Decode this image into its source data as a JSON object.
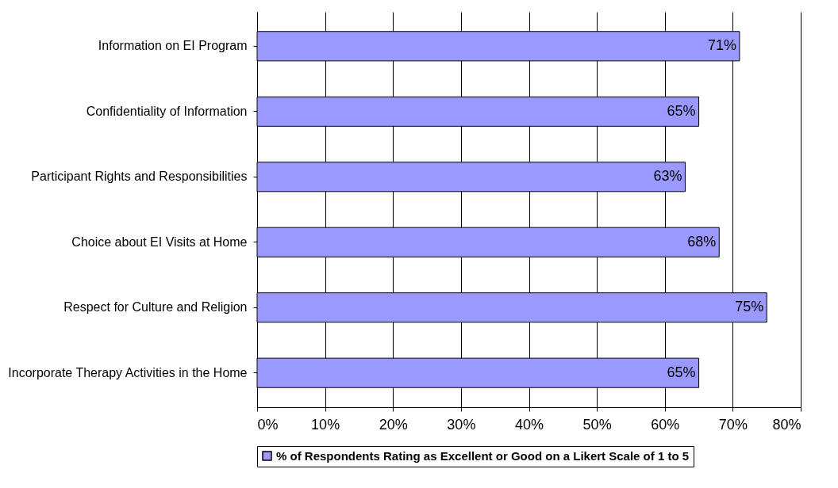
{
  "chart_data": {
    "type": "bar",
    "orientation": "horizontal",
    "categories": [
      "Information on EI Program",
      "Confidentiality of Information",
      "Participant Rights and Responsibilities",
      "Choice about EI Visits at Home",
      "Respect for Culture and Religion",
      "Incorporate Therapy Activities in the Home"
    ],
    "series": [
      {
        "name": "% of Respondents Rating as Excellent or Good on a Likert Scale of 1 to 5",
        "color": "#9999ff",
        "values": [
          71,
          65,
          63,
          68,
          75,
          65
        ],
        "value_labels": [
          "71%",
          "65%",
          "63%",
          "68%",
          "75%",
          "65%"
        ]
      }
    ],
    "xlim": [
      0,
      80
    ],
    "xticks": [
      {
        "value": 0,
        "label": "0%"
      },
      {
        "value": 10,
        "label": "10%"
      },
      {
        "value": 20,
        "label": "20%"
      },
      {
        "value": 30,
        "label": "30%"
      },
      {
        "value": 40,
        "label": "40%"
      },
      {
        "value": 50,
        "label": "50%"
      },
      {
        "value": 60,
        "label": "60%"
      },
      {
        "value": 70,
        "label": "70%"
      },
      {
        "value": 80,
        "label": "80%"
      }
    ],
    "grid": "x",
    "legend": "bottom"
  }
}
